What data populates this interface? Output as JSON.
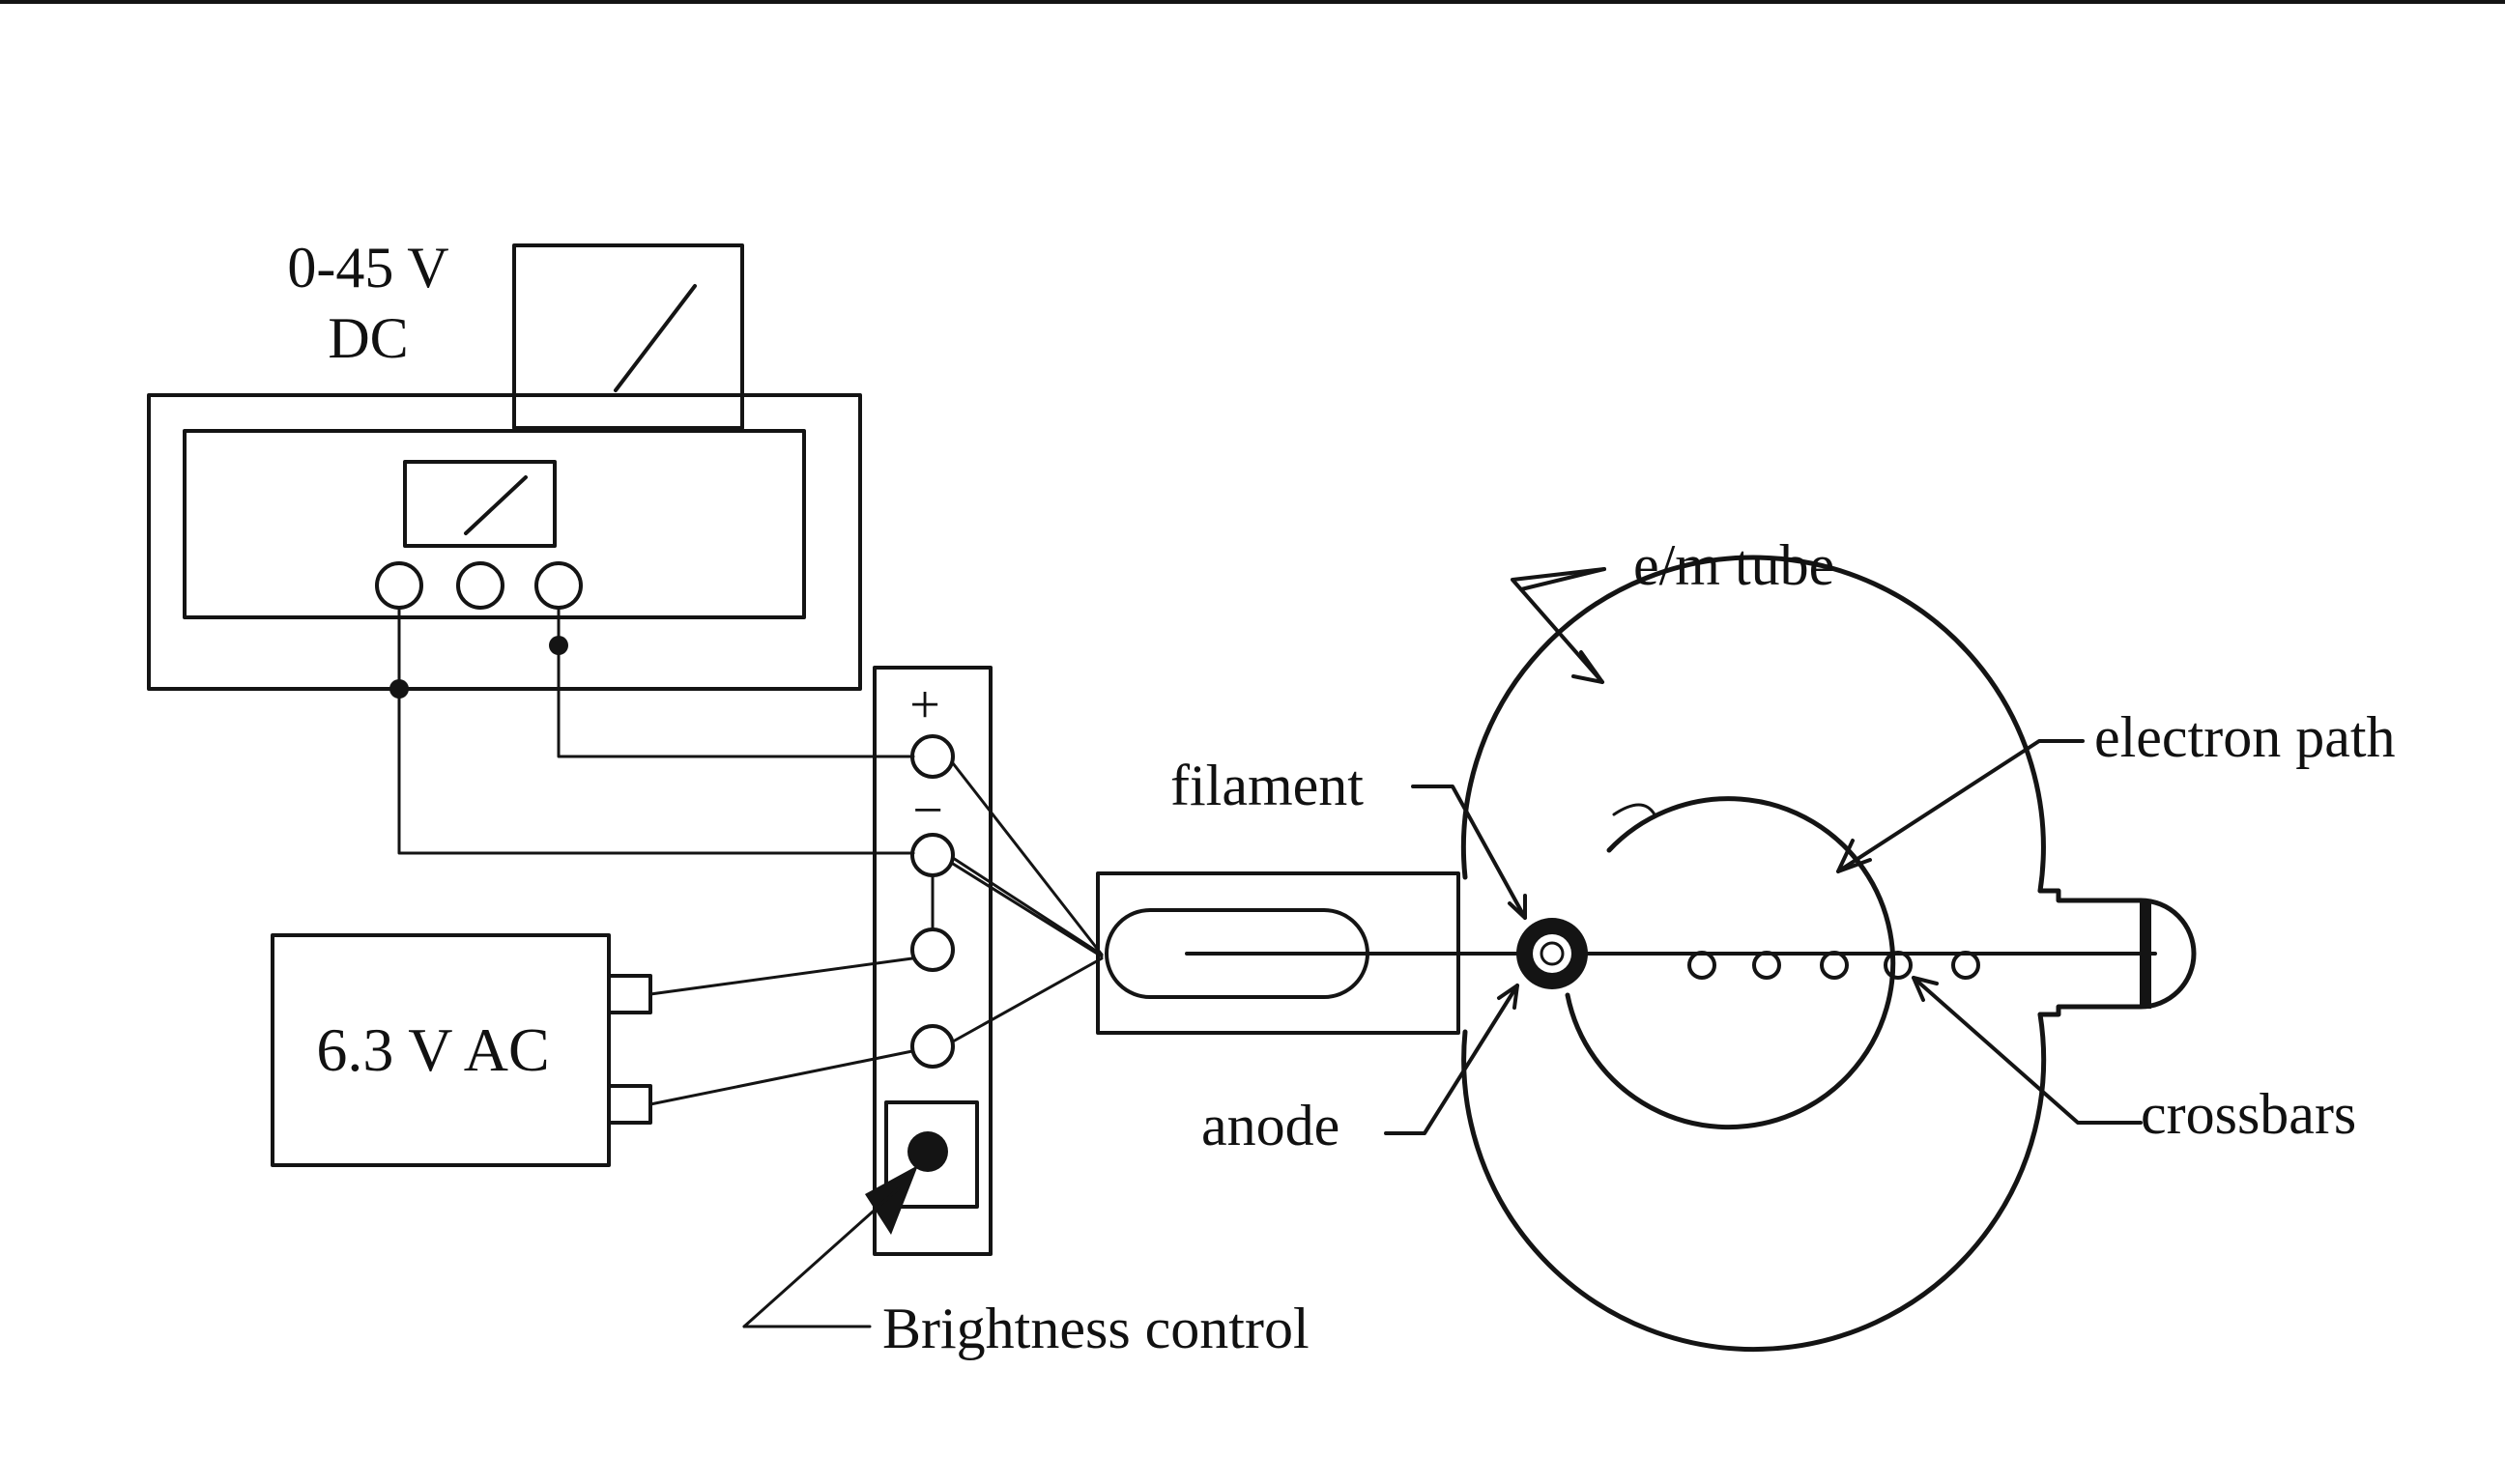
{
  "labels": {
    "dc_supply_line1": "0-45 V",
    "dc_supply_line2": "DC",
    "ac_supply": "6.3 V AC",
    "terminal_plus": "+",
    "terminal_minus": "−",
    "em_tube": "e/m tube",
    "electron_path": "electron path",
    "filament": "filament",
    "anode": "anode",
    "crossbars": "crossbars",
    "brightness_control": "Brightness control"
  }
}
